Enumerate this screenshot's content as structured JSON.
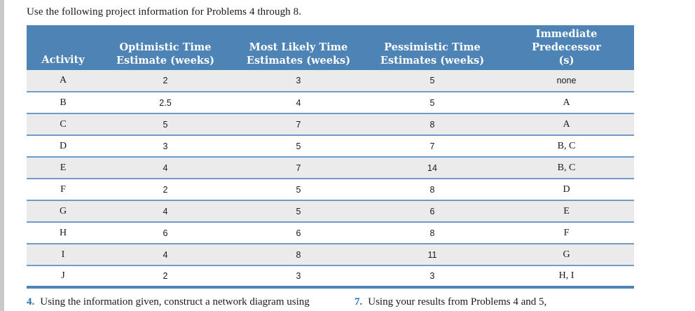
{
  "intro_text": "Use the following project information for Problems 4 through 8.",
  "table": {
    "headers": [
      {
        "line1": "",
        "line2": "Activity"
      },
      {
        "line1": "Optimistic Time",
        "line2": "Estimate (weeks)"
      },
      {
        "line1": "Most Likely Time",
        "line2": "Estimates (weeks)"
      },
      {
        "line1": "Pessimistic Time",
        "line2": "Estimates (weeks)"
      },
      {
        "line1": "Immediate Predecessor",
        "line2": "(s)"
      }
    ],
    "rows": [
      {
        "activity": "A",
        "optimistic": "2",
        "most_likely": "3",
        "pessimistic": "5",
        "predecessors": "none"
      },
      {
        "activity": "B",
        "optimistic": "2.5",
        "most_likely": "4",
        "pessimistic": "5",
        "predecessors": "A"
      },
      {
        "activity": "C",
        "optimistic": "5",
        "most_likely": "7",
        "pessimistic": "8",
        "predecessors": "A"
      },
      {
        "activity": "D",
        "optimistic": "3",
        "most_likely": "5",
        "pessimistic": "7",
        "predecessors": "B, C"
      },
      {
        "activity": "E",
        "optimistic": "4",
        "most_likely": "7",
        "pessimistic": "14",
        "predecessors": "B, C"
      },
      {
        "activity": "F",
        "optimistic": "2",
        "most_likely": "5",
        "pessimistic": "8",
        "predecessors": "D"
      },
      {
        "activity": "G",
        "optimistic": "4",
        "most_likely": "5",
        "pessimistic": "6",
        "predecessors": "E"
      },
      {
        "activity": "H",
        "optimistic": "6",
        "most_likely": "6",
        "pessimistic": "8",
        "predecessors": "F"
      },
      {
        "activity": "I",
        "optimistic": "4",
        "most_likely": "8",
        "pessimistic": "11",
        "predecessors": "G"
      },
      {
        "activity": "J",
        "optimistic": "2",
        "most_likely": "3",
        "pessimistic": "3",
        "predecessors": "H, I"
      }
    ]
  },
  "problems": [
    {
      "number": "4.",
      "text": "Using the information given, construct a network diagram using"
    },
    {
      "number": "7.",
      "text": "Using your results from Problems 4 and 5,"
    }
  ],
  "colors": {
    "header_bg": "#4d83b5",
    "rule": "#6f9bc6",
    "shaded_row": "#ebebeb",
    "problem_number": "#2f6fa8"
  }
}
